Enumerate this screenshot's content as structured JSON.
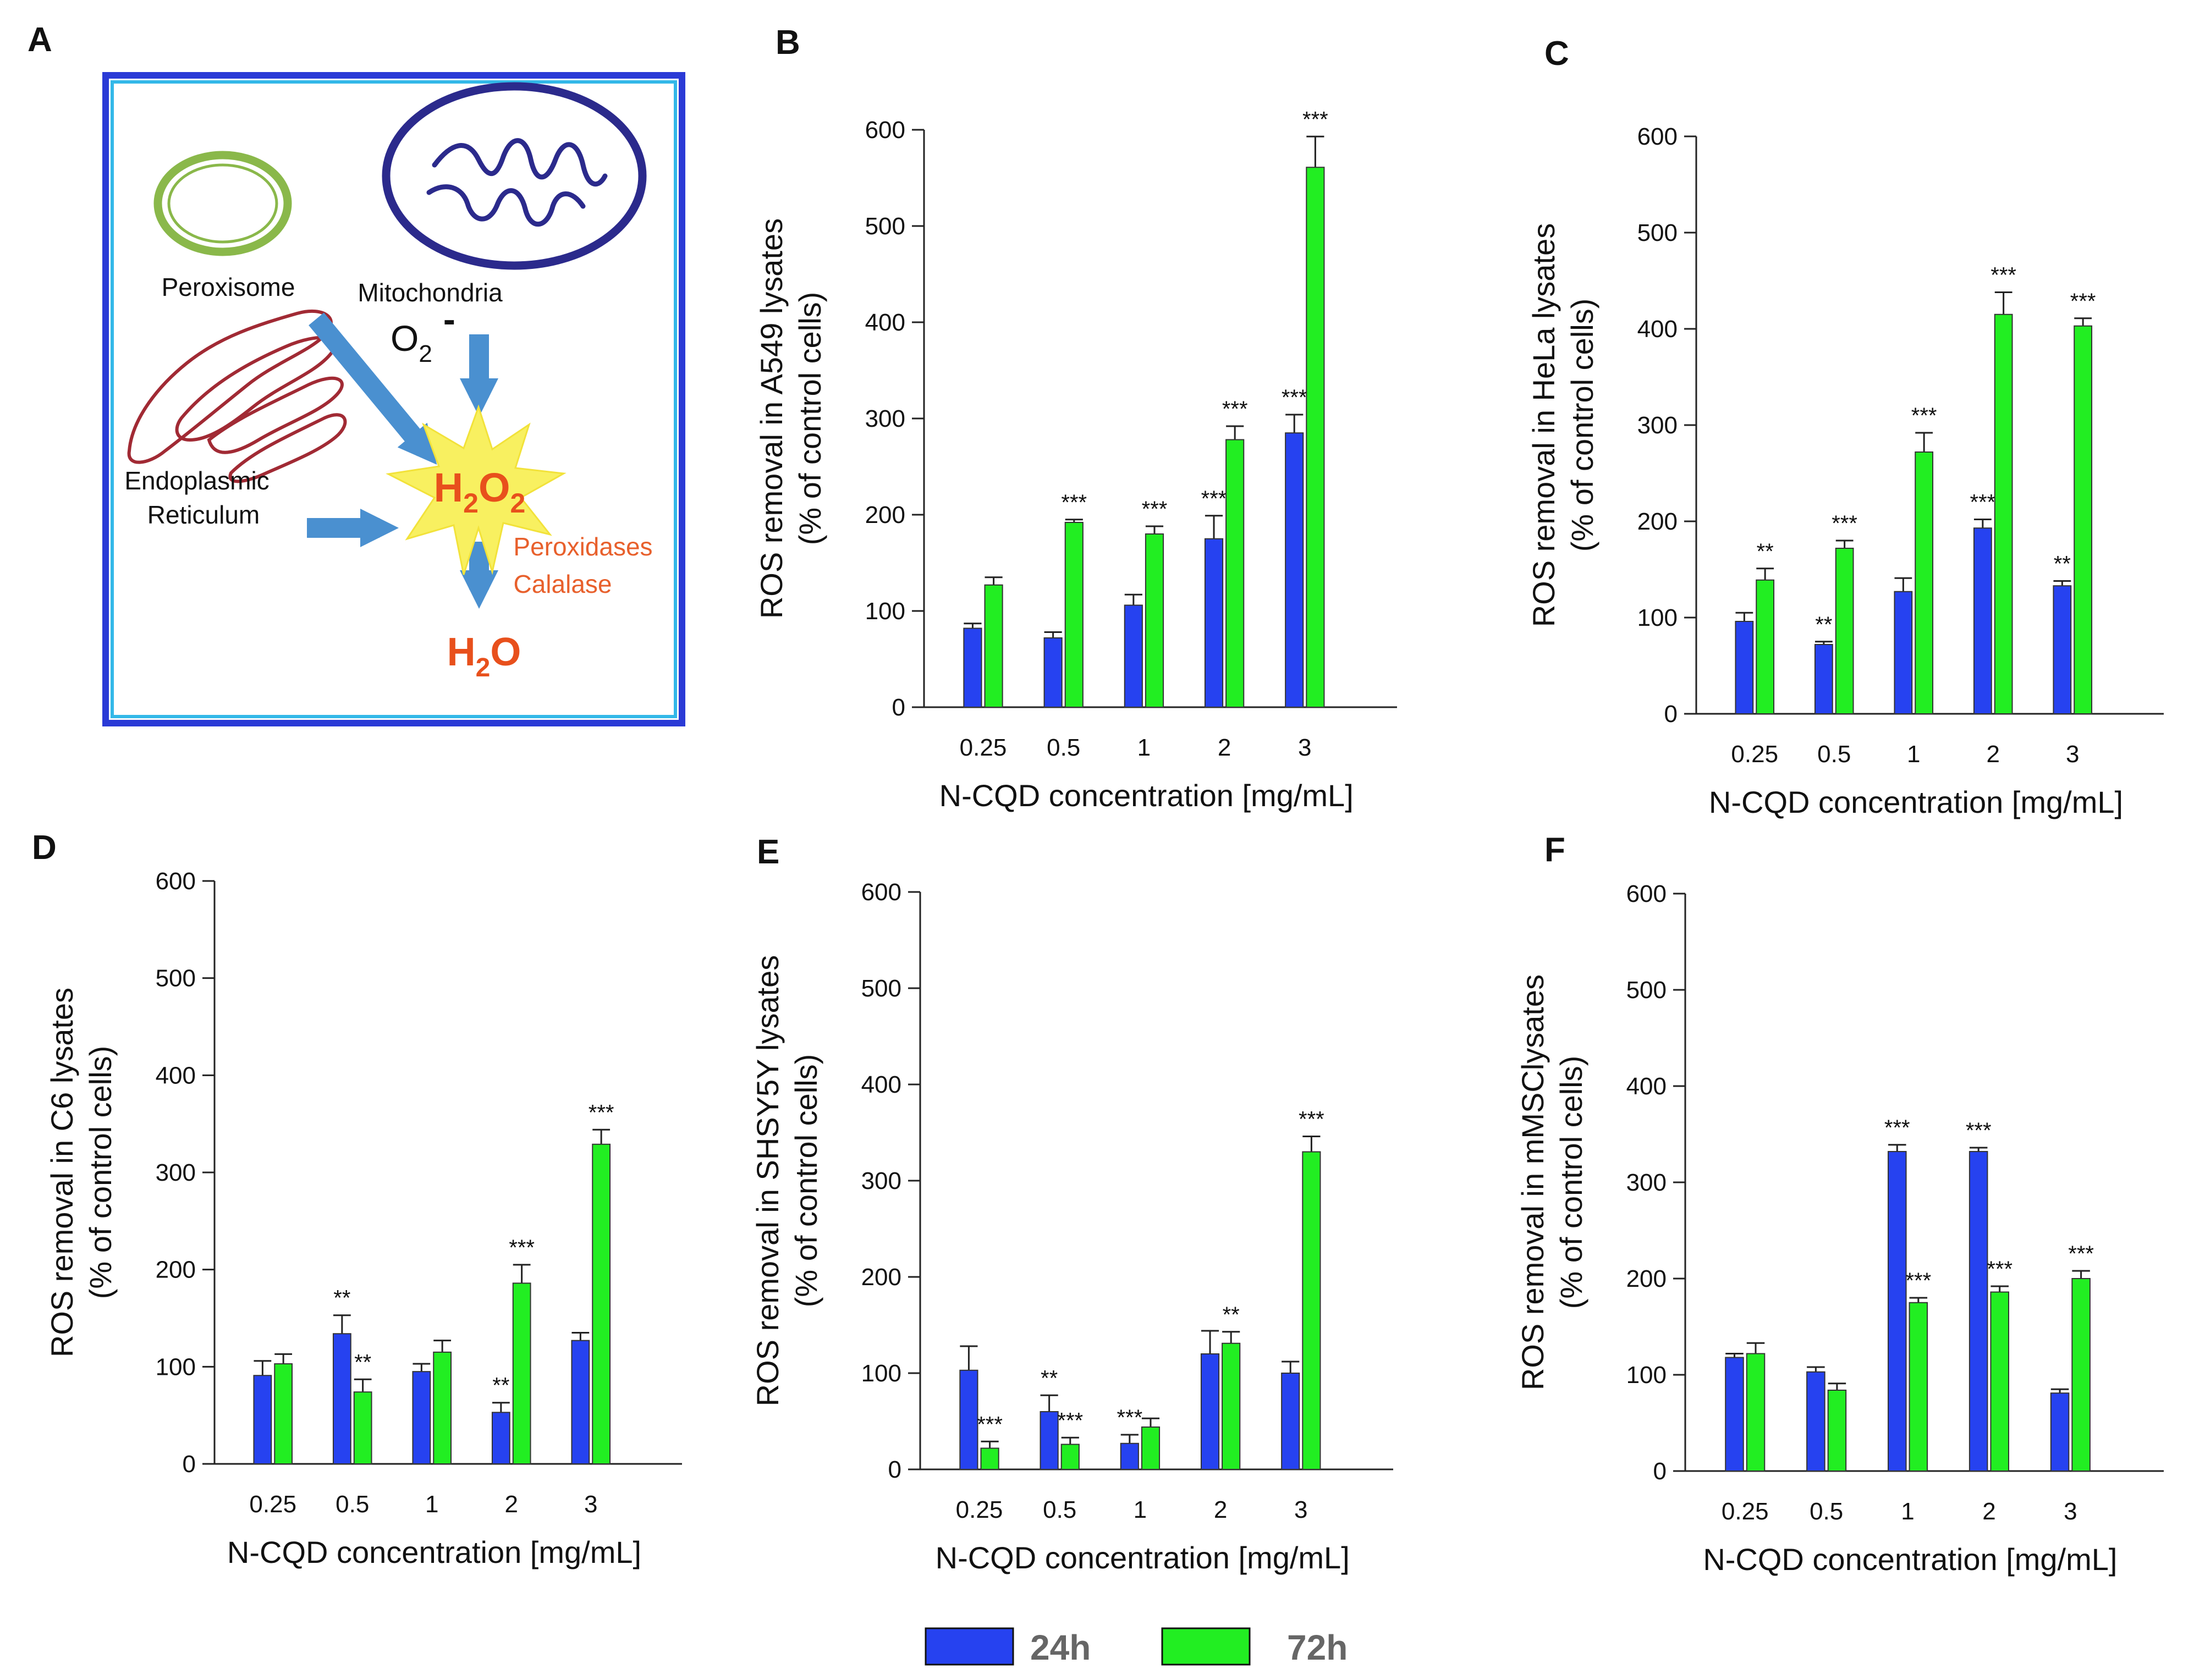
{
  "panel_a": {
    "label": "A",
    "peroxisome": "Peroxisome",
    "mitochondria": "Mitochondria",
    "superoxide_base": "O",
    "superoxide_sub": "2",
    "superoxide_sup": "-",
    "er_line1": "Endoplasmic",
    "er_line2": "Reticulum",
    "h2o2_h": "H",
    "h2o2_sub1": "2",
    "h2o2_o": "O",
    "h2o2_sub2": "2",
    "enzyme1": "Peroxidases",
    "enzyme2": "Calalase",
    "water_h": "H",
    "water_sub": "2",
    "water_o": "O",
    "colors": {
      "border": "#2a3ad6",
      "inner_border": "#33b8e8",
      "peroxisome": "#8ab84a",
      "mitochondria": "#2b2a8c",
      "er": "#a12a34",
      "arrow": "#4a90d0",
      "star": "#f8f060",
      "h2o2_text": "#e8501c",
      "enzyme_text": "#e8602c",
      "water_text": "#e8501c"
    }
  },
  "legend": {
    "items": [
      {
        "label": "24h",
        "color": "#2642f0"
      },
      {
        "label": "72h",
        "color": "#22ee22"
      }
    ]
  },
  "chart_data": [
    {
      "type": "bar",
      "panel": "B",
      "categories": [
        "0.25",
        "0.5",
        "1",
        "2",
        "3"
      ],
      "series": [
        {
          "name": "24h",
          "values": [
            82,
            72,
            106,
            175,
            285
          ],
          "errors": [
            5,
            6,
            11,
            24,
            19
          ],
          "sig": [
            "",
            "",
            "",
            "***",
            "***"
          ]
        },
        {
          "name": "72h",
          "values": [
            127,
            192,
            180,
            278,
            561
          ],
          "errors": [
            8,
            3,
            8,
            14,
            32
          ],
          "sig": [
            "",
            "***",
            "***",
            "***",
            "***"
          ]
        }
      ],
      "xlabel": "N-CQD concentration [mg/mL]",
      "ylabel_line1": "ROS removal in A549 lysates",
      "ylabel_line2": "(% of control cells)",
      "ylim": [
        0,
        600
      ],
      "yticks": [
        "0",
        "100",
        "200",
        "300",
        "400",
        "500",
        "600"
      ]
    },
    {
      "type": "bar",
      "panel": "C",
      "categories": [
        "0.25",
        "0.5",
        "1",
        "2",
        "3"
      ],
      "series": [
        {
          "name": "24h",
          "values": [
            96,
            72,
            127,
            193,
            133
          ],
          "errors": [
            9,
            3,
            14,
            9,
            5
          ],
          "sig": [
            "",
            "**",
            "",
            "***",
            "**"
          ]
        },
        {
          "name": "72h",
          "values": [
            139,
            172,
            272,
            415,
            403
          ],
          "errors": [
            12,
            8,
            20,
            23,
            8
          ],
          "sig": [
            "**",
            "***",
            "***",
            "***",
            "***"
          ]
        }
      ],
      "xlabel": "N-CQD concentration [mg/mL]",
      "ylabel_line1": "ROS removal in HeLa lysates",
      "ylabel_line2": "(% of control cells)",
      "ylim": [
        0,
        600
      ],
      "yticks": [
        "0",
        "100",
        "200",
        "300",
        "400",
        "500",
        "600"
      ]
    },
    {
      "type": "bar",
      "panel": "D",
      "categories": [
        "0.25",
        "0.5",
        "1",
        "2",
        "3"
      ],
      "series": [
        {
          "name": "24h",
          "values": [
            91,
            134,
            95,
            53,
            127
          ],
          "errors": [
            15,
            19,
            8,
            10,
            8
          ],
          "sig": [
            "",
            "**",
            "",
            "**",
            ""
          ]
        },
        {
          "name": "72h",
          "values": [
            103,
            74,
            115,
            186,
            329
          ],
          "errors": [
            10,
            13,
            12,
            19,
            15
          ],
          "sig": [
            "",
            "**",
            "",
            "***",
            "***"
          ]
        }
      ],
      "xlabel": "N-CQD concentration [mg/mL]",
      "ylabel_line1": "ROS removal in C6 lysates",
      "ylabel_line2": "(% of control cells)",
      "ylim": [
        0,
        600
      ],
      "yticks": [
        "0",
        "100",
        "200",
        "300",
        "400",
        "500",
        "600"
      ]
    },
    {
      "type": "bar",
      "panel": "E",
      "categories": [
        "0.25",
        "0.5",
        "1",
        "2",
        "3"
      ],
      "series": [
        {
          "name": "24h",
          "values": [
            103,
            60,
            27,
            120,
            100
          ],
          "errors": [
            25,
            17,
            9,
            24,
            12
          ],
          "sig": [
            "",
            "**",
            "***",
            "",
            ""
          ]
        },
        {
          "name": "72h",
          "values": [
            22,
            26,
            44,
            131,
            330
          ],
          "errors": [
            7,
            7,
            9,
            12,
            16
          ],
          "sig": [
            "***",
            "***",
            "",
            "**",
            "***"
          ]
        }
      ],
      "xlabel": "N-CQD concentration [mg/mL]",
      "ylabel_line1": "ROS removal in SHSY5Y lysates",
      "ylabel_line2": "(% of control cells)",
      "ylim": [
        0,
        600
      ],
      "yticks": [
        "0",
        "100",
        "200",
        "300",
        "400",
        "500",
        "600"
      ]
    },
    {
      "type": "bar",
      "panel": "F",
      "categories": [
        "0.25",
        "0.5",
        "1",
        "2",
        "3"
      ],
      "series": [
        {
          "name": "24h",
          "values": [
            118,
            103,
            332,
            332,
            81
          ],
          "errors": [
            4,
            5,
            7,
            4,
            4
          ],
          "sig": [
            "",
            "",
            "***",
            "***",
            ""
          ]
        },
        {
          "name": "72h",
          "values": [
            122,
            84,
            175,
            186,
            200
          ],
          "errors": [
            11,
            7,
            5,
            6,
            8
          ],
          "sig": [
            "",
            "",
            "***",
            "***",
            "***"
          ]
        }
      ],
      "xlabel": "N-CQD concentration [mg/mL]",
      "ylabel_line1": "ROS removal in mMSClysates",
      "ylabel_line2": "(% of control cells)",
      "ylim": [
        0,
        600
      ],
      "yticks": [
        "0",
        "100",
        "200",
        "300",
        "400",
        "500",
        "600"
      ]
    }
  ]
}
